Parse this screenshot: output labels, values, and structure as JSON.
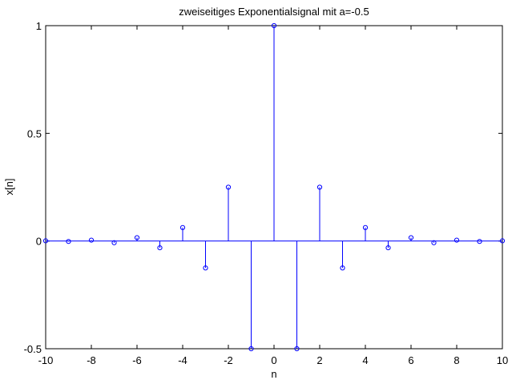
{
  "chart_data": {
    "type": "stem",
    "title": "zweiseitiges Exponentialsignal mit a=-0.5",
    "xlabel": "n",
    "ylabel": "x[n]",
    "xlim": [
      -10,
      10
    ],
    "ylim": [
      -0.5,
      1
    ],
    "xticks": [
      -10,
      -8,
      -6,
      -4,
      -2,
      0,
      2,
      4,
      6,
      8,
      10
    ],
    "xtick_labels": [
      "-10",
      "-8",
      "-6",
      "-4",
      "-2",
      "0",
      "2",
      "4",
      "6",
      "8",
      "10"
    ],
    "yticks": [
      -0.5,
      0,
      0.5,
      1
    ],
    "ytick_labels": [
      "-0.5",
      "0",
      "0.5",
      "1"
    ],
    "grid": false,
    "series": [
      {
        "name": "x[n]",
        "x": [
          -10,
          -9,
          -8,
          -7,
          -6,
          -5,
          -4,
          -3,
          -2,
          -1,
          0,
          1,
          2,
          3,
          4,
          5,
          6,
          7,
          8,
          9,
          10
        ],
        "values": [
          0.000977,
          -0.001953,
          0.003906,
          -0.007813,
          0.015625,
          -0.03125,
          0.0625,
          -0.125,
          0.25,
          -0.5,
          1,
          -0.5,
          0.25,
          -0.125,
          0.0625,
          -0.03125,
          0.015625,
          -0.007813,
          0.003906,
          -0.001953,
          0.000977
        ]
      }
    ],
    "colors": {
      "stem": "#0000ff",
      "axes": "#000000",
      "background": "#ffffff"
    }
  }
}
